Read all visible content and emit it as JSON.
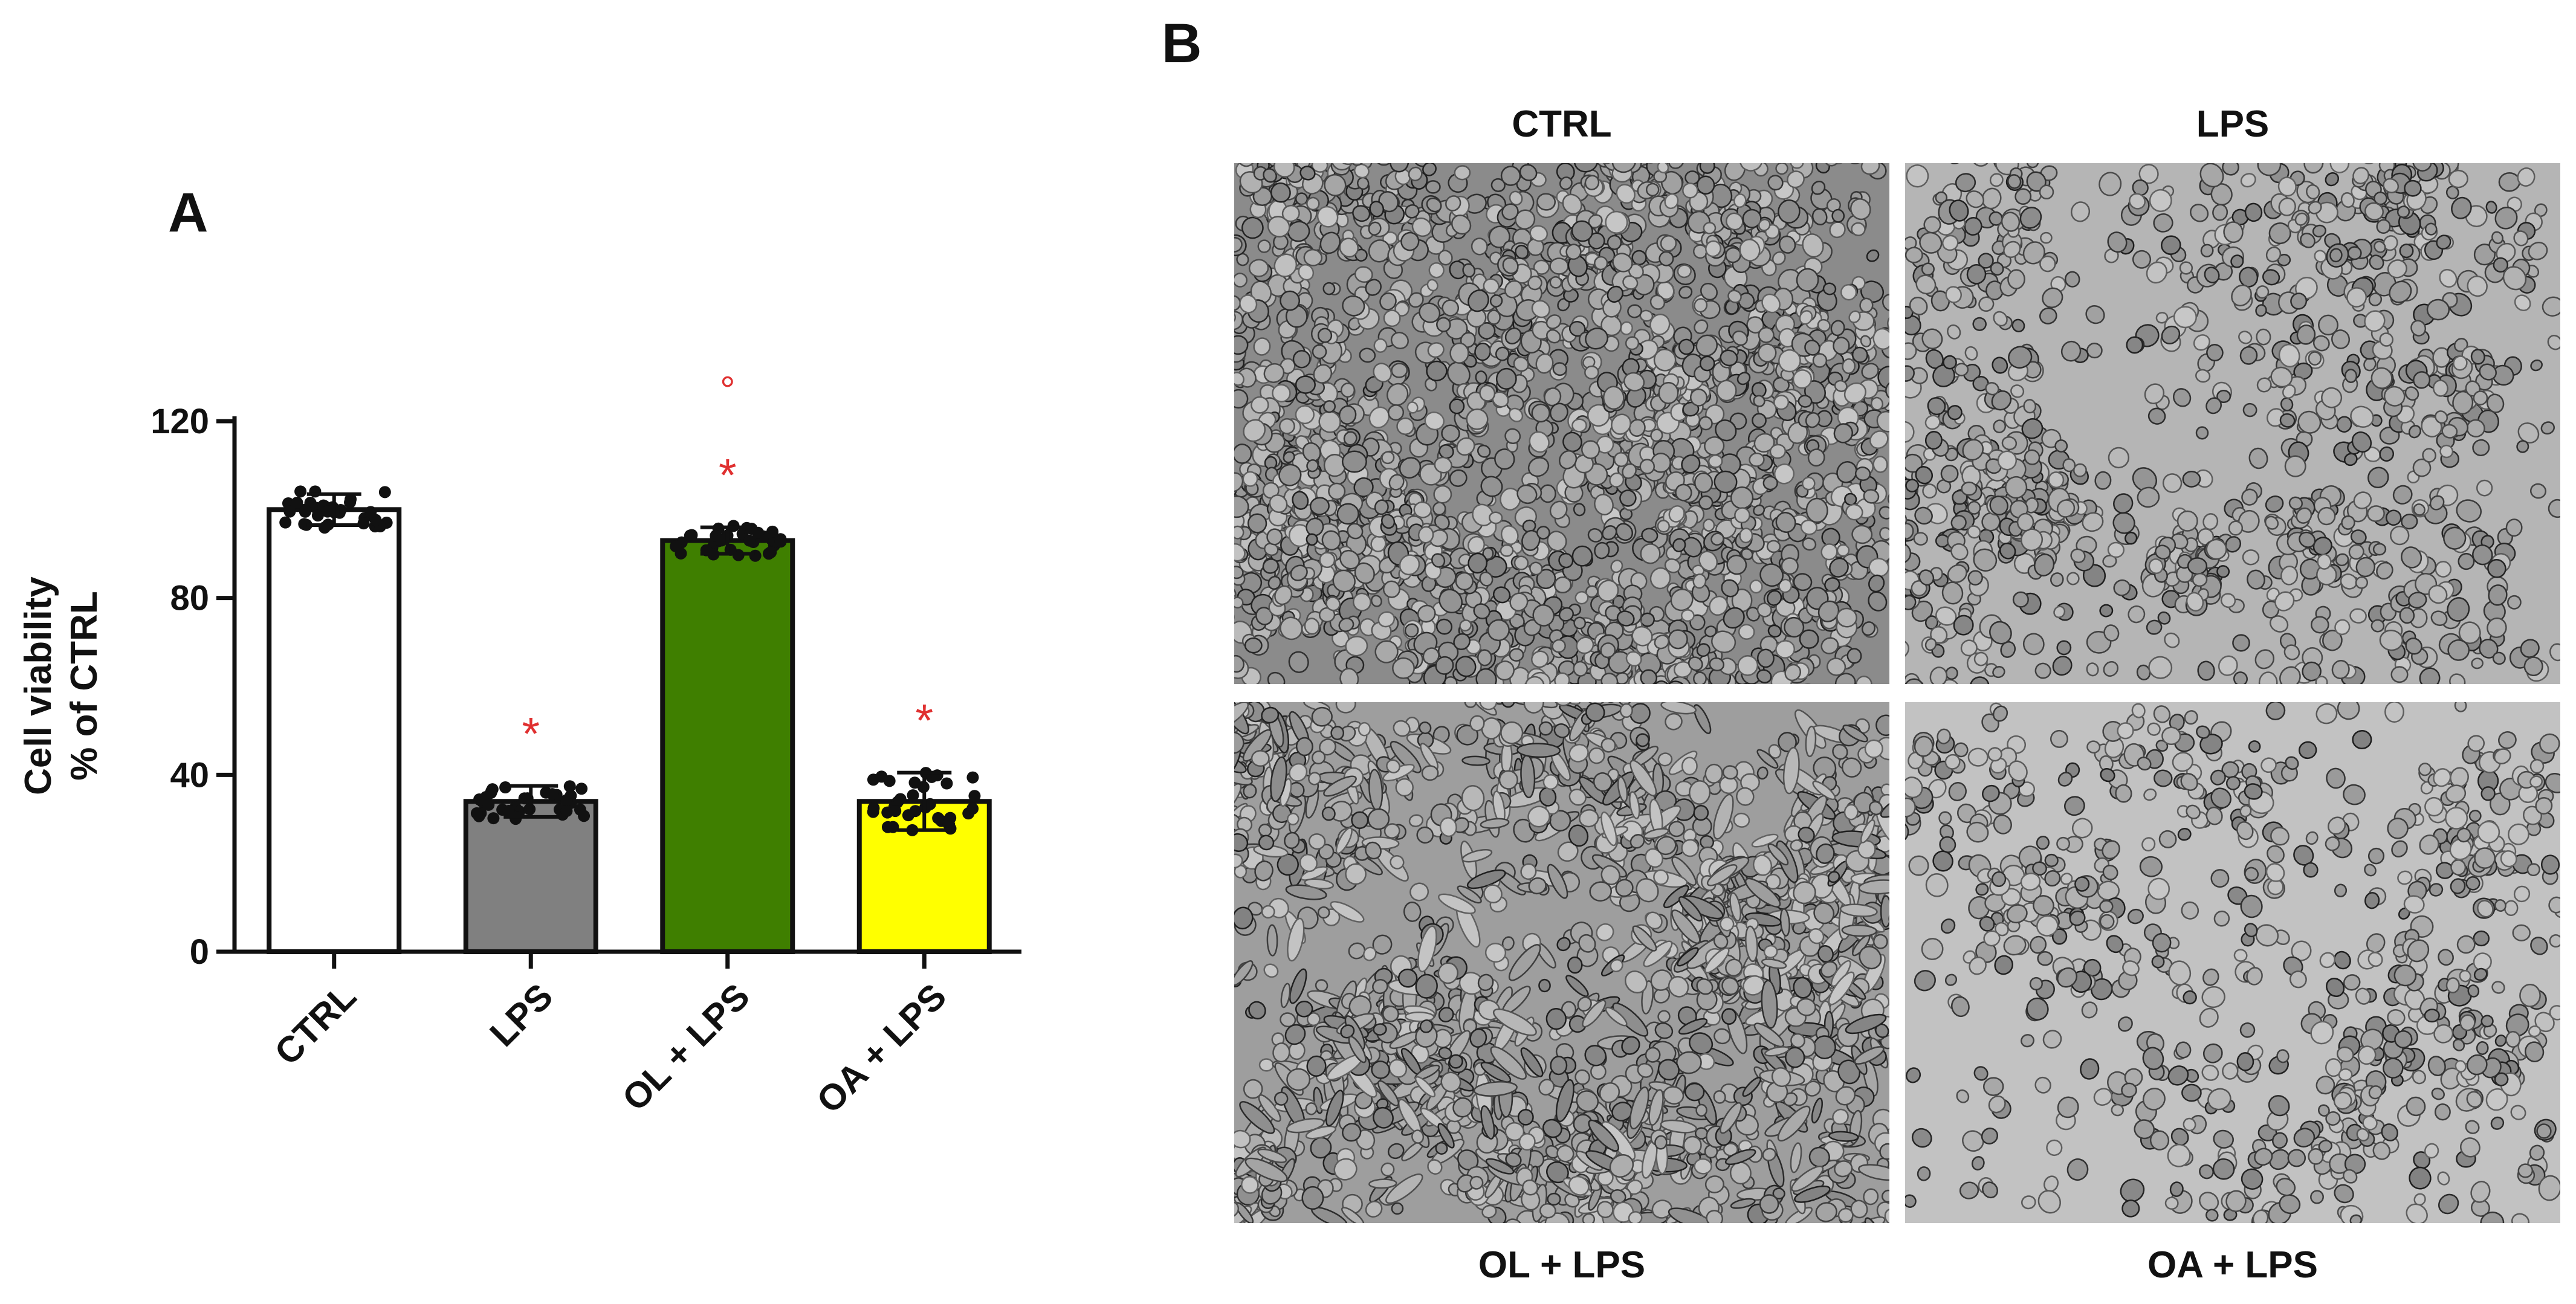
{
  "panel_a": {
    "letter": "A"
  },
  "panel_b": {
    "letter": "B",
    "images": [
      {
        "label": "CTRL",
        "density": 2600,
        "bg": "#8b8b8b",
        "style": "dense"
      },
      {
        "label": "LPS",
        "density": 1100,
        "bg": "#b5b5b5",
        "style": "sparse"
      },
      {
        "label": "OL + LPS",
        "density": 1900,
        "bg": "#9e9e9e",
        "style": "spindle"
      },
      {
        "label": "OA + LPS",
        "density": 750,
        "bg": "#c2c2c2",
        "style": "sparse"
      }
    ]
  },
  "chart_data": {
    "type": "bar",
    "categories": [
      "CTRL",
      "LPS",
      "OL + LPS",
      "OA + LPS"
    ],
    "values": [
      100,
      34,
      93,
      34
    ],
    "errors": [
      3.5,
      3.5,
      3,
      6.5
    ],
    "point_spread": [
      4.5,
      4,
      3.5,
      7
    ],
    "significance": [
      "",
      "*",
      "* °",
      "*"
    ],
    "ylabel": "Cell viability\n% of CTRL",
    "ylim": [
      0,
      120
    ],
    "yticks": [
      0,
      40,
      80,
      120
    ],
    "grid": false,
    "bar_colors": [
      "#ffffff",
      "#808080",
      "#3f7f00",
      "#ffff00"
    ],
    "significance_color": "#e03030"
  }
}
